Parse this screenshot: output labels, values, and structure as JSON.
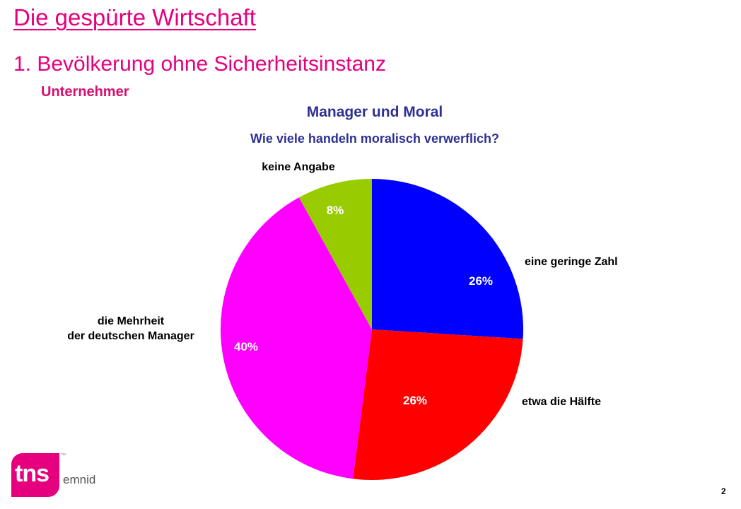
{
  "header": {
    "title": "Die gespürte Wirtschaft",
    "subtitle": "1. Bevölkerung ohne Sicherheitsinstanz",
    "section": "Unternehmer"
  },
  "chart_data": {
    "type": "pie",
    "title": "Manager und Moral",
    "subtitle": "Wie viele  handeln moralisch verwerflich?",
    "slices": [
      {
        "label": "eine geringe Zahl",
        "value": 26,
        "display": "26%",
        "color": "#0000ff"
      },
      {
        "label": "etwa die Hälfte",
        "value": 26,
        "display": "26%",
        "color": "#ff0000"
      },
      {
        "label": "die Mehrheit der deutschen Manager",
        "label_lines": [
          "die Mehrheit",
          "der deutschen Manager"
        ],
        "value": 40,
        "display": "40%",
        "color": "#ff00ff"
      },
      {
        "label": "keine Angabe",
        "value": 8,
        "display": "8%",
        "color": "#99cc00"
      }
    ]
  },
  "footer": {
    "logo_main": "tns",
    "logo_sub": "emnid",
    "logo_mark": "™",
    "page_number": "2"
  }
}
